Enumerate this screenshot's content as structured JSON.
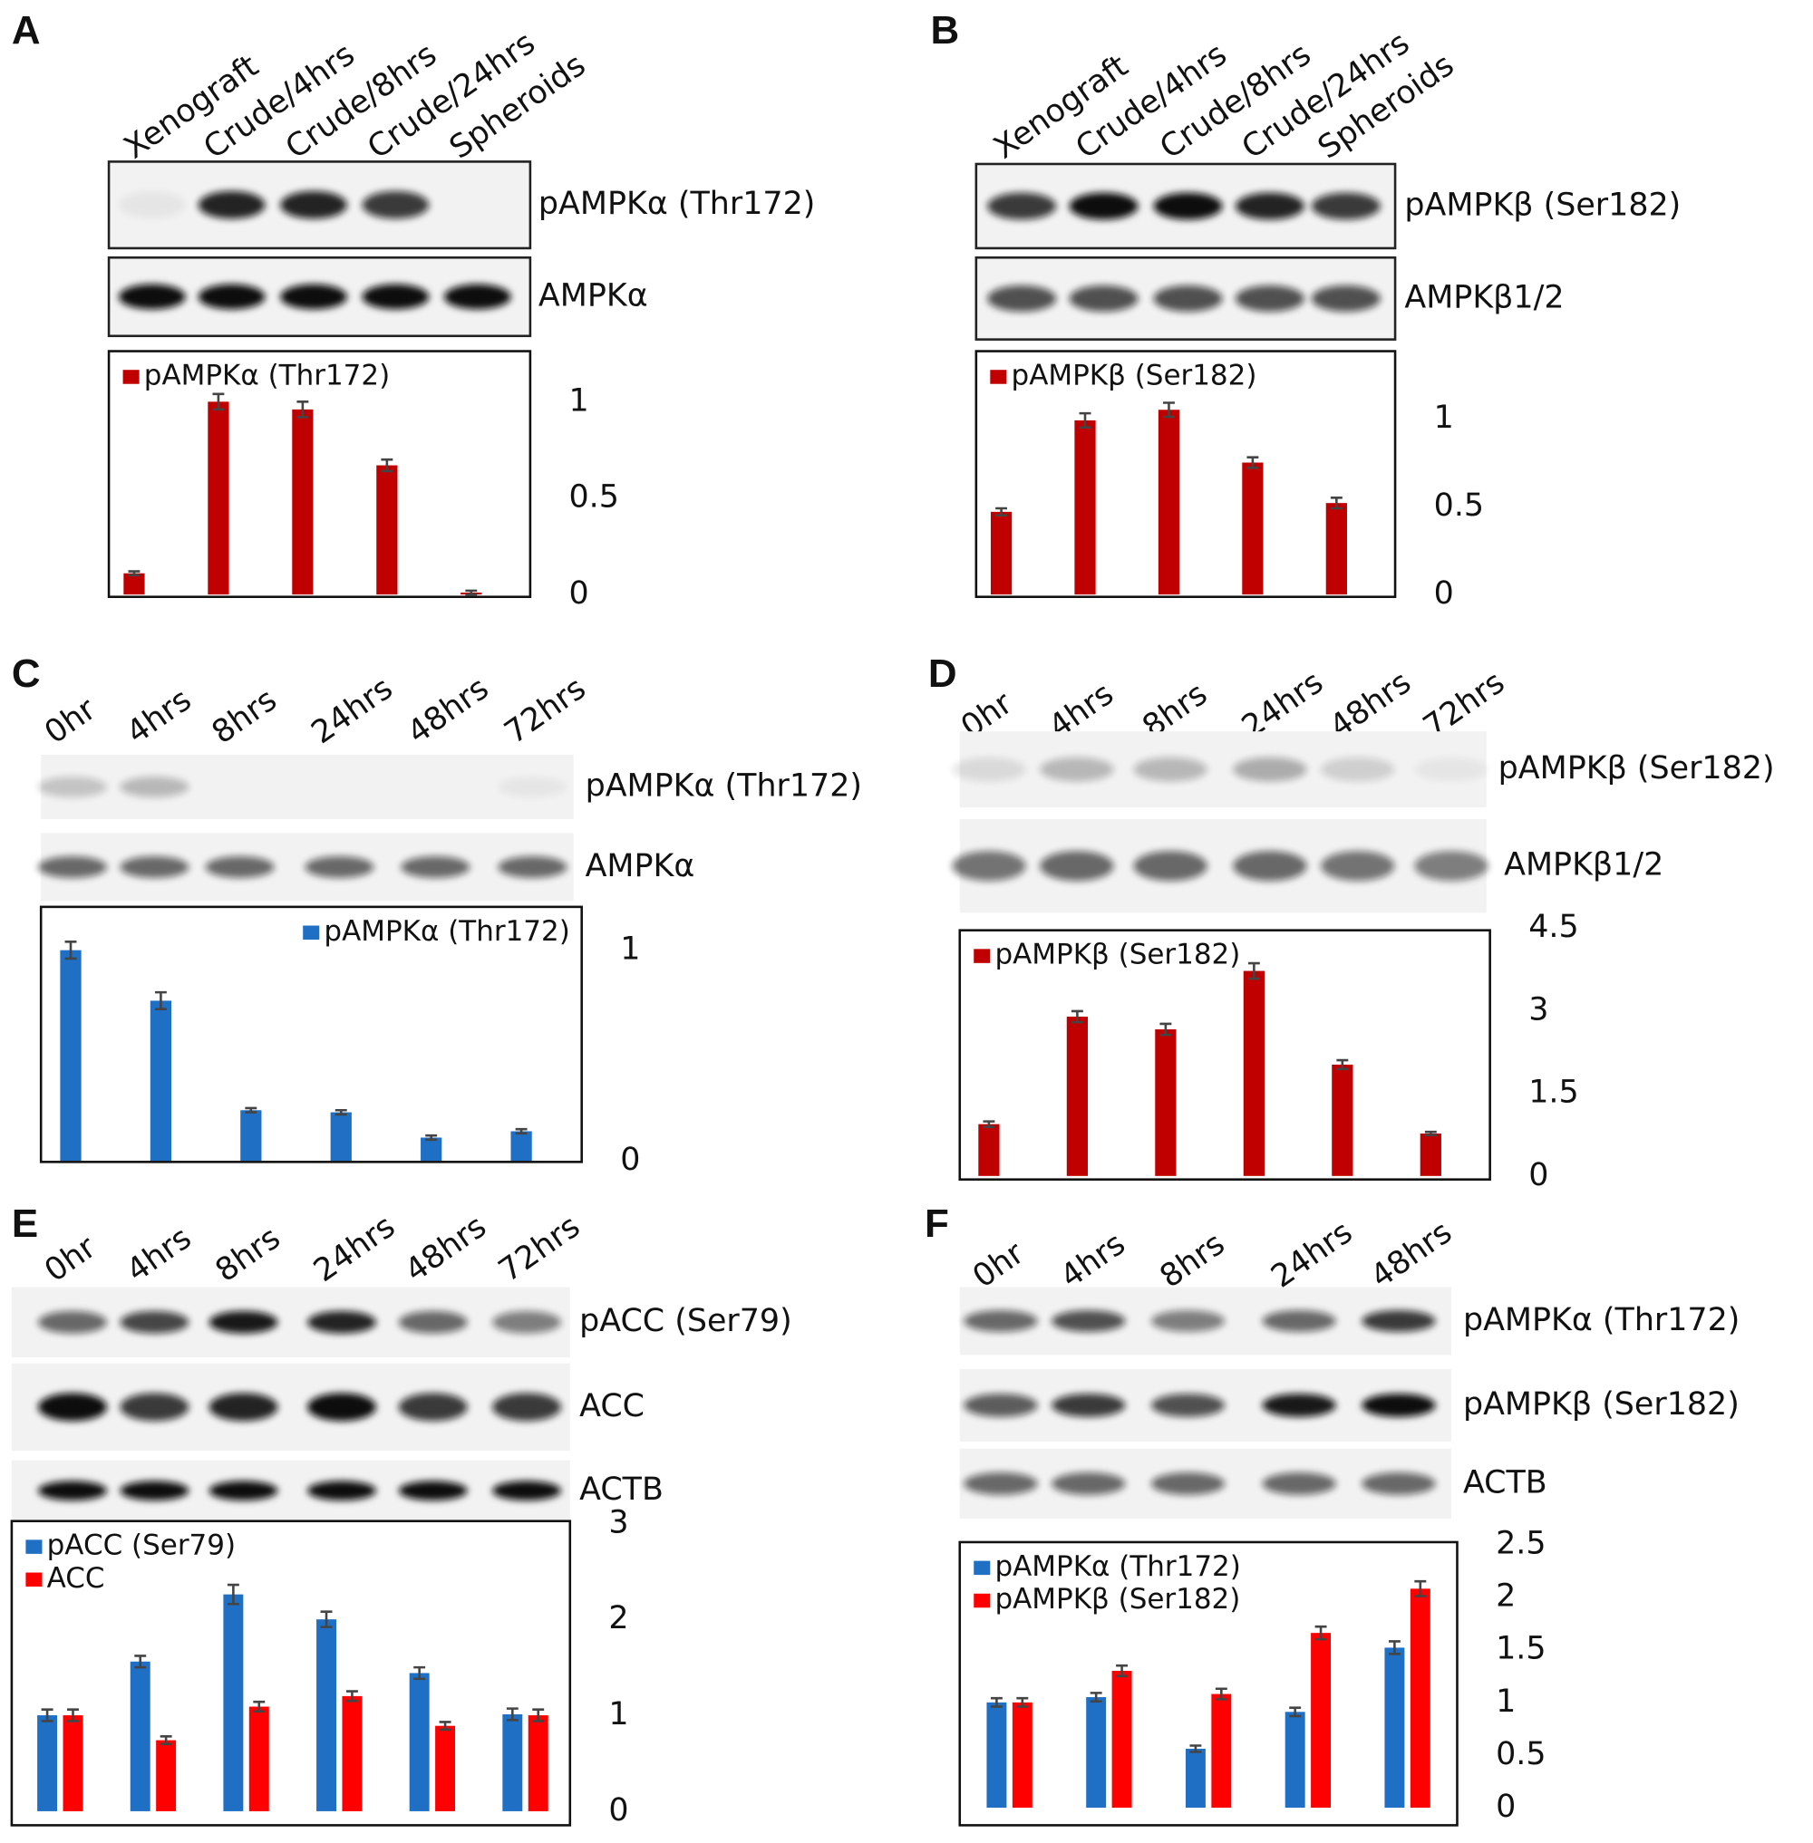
{
  "chart_data": [
    {
      "type": "bar",
      "panel": "A",
      "categories": [
        "Xenograft",
        "Crude/4hrs",
        "Crude/8hrs",
        "Crude/24hrs",
        "Spheroids"
      ],
      "blots": [
        "pAMPKα (Thr172)",
        "AMPKα"
      ],
      "legend": "upper left",
      "series": [
        {
          "name": "pAMPKα (Thr172)",
          "color": "#c00000",
          "values": [
            0.11,
            1.0,
            0.96,
            0.67,
            0.01
          ],
          "errors": [
            0.01,
            0.04,
            0.04,
            0.03,
            0.01
          ]
        }
      ],
      "ylim": [
        0,
        1.25
      ],
      "yticks": [
        0,
        0.5,
        1
      ]
    },
    {
      "type": "bar",
      "panel": "B",
      "categories": [
        "Xenograft",
        "Crude/4hrs",
        "Crude/8hrs",
        "Crude/24hrs",
        "Spheroids"
      ],
      "blots": [
        "pAMPKβ (Ser182)",
        "AMPKβ1/2"
      ],
      "legend": "upper left",
      "series": [
        {
          "name": "pAMPKβ (Ser182)",
          "color": "#c00000",
          "values": [
            0.47,
            0.99,
            1.05,
            0.75,
            0.52
          ],
          "errors": [
            0.02,
            0.04,
            0.04,
            0.03,
            0.03
          ]
        }
      ],
      "ylim": [
        0,
        1.35
      ],
      "yticks": [
        0,
        0.5,
        1
      ]
    },
    {
      "type": "bar",
      "panel": "C",
      "categories": [
        "0hr",
        "4hrs",
        "8hrs",
        "24hrs",
        "48hrs",
        "72hrs"
      ],
      "blots": [
        "pAMPKα (Thr172)",
        "AMPKα"
      ],
      "legend": "upper right",
      "series": [
        {
          "name": "pAMPKα (Thr172)",
          "color": "#1f6fc5",
          "values": [
            1.0,
            0.76,
            0.24,
            0.23,
            0.11,
            0.14
          ],
          "errors": [
            0.04,
            0.04,
            0.01,
            0.01,
            0.01,
            0.01
          ]
        }
      ],
      "ylim": [
        0,
        1.2
      ],
      "yticks": [
        0,
        1
      ]
    },
    {
      "type": "bar",
      "panel": "D",
      "categories": [
        "0hr",
        "4hrs",
        "8hrs",
        "24hrs",
        "48hrs",
        "72hrs"
      ],
      "blots": [
        "pAMPKβ (Ser182)",
        "AMPKβ1/2"
      ],
      "legend": "upper left",
      "series": [
        {
          "name": "pAMPKβ (Ser182)",
          "color": "#c00000",
          "values": [
            0.94,
            2.89,
            2.66,
            3.72,
            2.02,
            0.77
          ],
          "errors": [
            0.05,
            0.1,
            0.1,
            0.14,
            0.08,
            0.03
          ]
        }
      ],
      "ylim": [
        0,
        4.5
      ],
      "yticks": [
        0,
        1.5,
        3,
        4.5
      ]
    },
    {
      "type": "bar",
      "panel": "E",
      "categories": [
        "0hr",
        "4hrs",
        "8hrs",
        "24hrs",
        "48hrs",
        "72hrs"
      ],
      "blots": [
        "pACC (Ser79)",
        "ACC",
        "ACTB"
      ],
      "legend": "upper left",
      "series": [
        {
          "name": "pACC (Ser79)",
          "color": "#1f6fc5",
          "values": [
            1.0,
            1.56,
            2.26,
            2.0,
            1.44,
            1.01
          ],
          "errors": [
            0.06,
            0.06,
            0.1,
            0.08,
            0.06,
            0.06
          ]
        },
        {
          "name": "ACC",
          "color": "#ff0000",
          "values": [
            1.0,
            0.74,
            1.09,
            1.2,
            0.89,
            1.0
          ],
          "errors": [
            0.06,
            0.04,
            0.05,
            0.05,
            0.04,
            0.06
          ]
        }
      ],
      "ylim": [
        0,
        3
      ],
      "yticks": [
        0,
        1,
        2,
        3
      ]
    },
    {
      "type": "bar",
      "panel": "F",
      "categories": [
        "0hr",
        "4hrs",
        "8hrs",
        "24hrs",
        "48hrs"
      ],
      "blots": [
        "pAMPKα (Thr172)",
        "pAMPKβ (Ser182)",
        "ACTB"
      ],
      "legend": "upper left",
      "series": [
        {
          "name": "pAMPKα (Thr172)",
          "color": "#1f6fc5",
          "values": [
            1.0,
            1.05,
            0.56,
            0.91,
            1.52
          ],
          "errors": [
            0.04,
            0.04,
            0.03,
            0.04,
            0.06
          ]
        },
        {
          "name": "pAMPKβ (Ser182)",
          "color": "#ff0000",
          "values": [
            1.0,
            1.3,
            1.08,
            1.66,
            2.08
          ],
          "errors": [
            0.04,
            0.05,
            0.05,
            0.06,
            0.07
          ]
        }
      ],
      "ylim": [
        0,
        2.5
      ],
      "yticks": [
        0,
        0.5,
        1,
        1.5,
        2,
        2.5
      ]
    }
  ]
}
